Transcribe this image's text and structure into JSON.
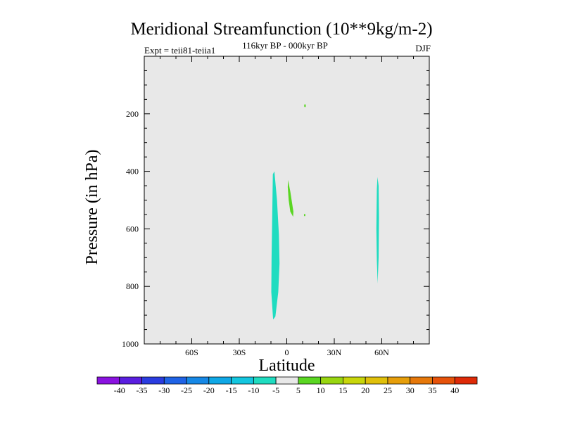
{
  "chart_data": {
    "type": "contour",
    "title": "Meridional Streamfunction (10**9kg/m-2)",
    "subtitle_left": "Expt = teii81-teiia1",
    "subtitle_center": "116kyr BP - 000kyr BP",
    "subtitle_right": "DJF",
    "xlabel": "Latitude",
    "ylabel": "Pressure (in hPa)",
    "xlim": [
      -90,
      90
    ],
    "ylim": [
      1000,
      0
    ],
    "x_ticks": [
      {
        "value": -60,
        "label": "60S"
      },
      {
        "value": -30,
        "label": "30S"
      },
      {
        "value": 0,
        "label": "0"
      },
      {
        "value": 30,
        "label": "30N"
      },
      {
        "value": 60,
        "label": "60N"
      }
    ],
    "y_ticks": [
      {
        "value": 200,
        "label": "200"
      },
      {
        "value": 400,
        "label": "400"
      },
      {
        "value": 600,
        "label": "600"
      },
      {
        "value": 800,
        "label": "800"
      },
      {
        "value": 1000,
        "label": "1000"
      }
    ],
    "background_color": "#e8e8e8",
    "colorbar": {
      "labels": [
        "-40",
        "-35",
        "-30",
        "-25",
        "-20",
        "-15",
        "-10",
        "-5",
        "5",
        "10",
        "15",
        "20",
        "25",
        "30",
        "35",
        "40"
      ],
      "colors": [
        "#8a12e0",
        "#5a1ee0",
        "#2a3ce0",
        "#1f63e6",
        "#1688e6",
        "#0fa8e6",
        "#13c6df",
        "#1fdcc0",
        "#e8e8e8",
        "#5ad622",
        "#98d610",
        "#c8d60a",
        "#e0c00a",
        "#e69e0a",
        "#e6780a",
        "#e6520a",
        "#de2a08"
      ]
    },
    "features": [
      {
        "name": "southern-tropical-cell",
        "level": "-10 to -5",
        "color": "#1fdcc0",
        "polygon": [
          [
            -8.8,
            410
          ],
          [
            -7.8,
            400
          ],
          [
            -6.2,
            500
          ],
          [
            -5.0,
            620
          ],
          [
            -4.6,
            720
          ],
          [
            -5.4,
            820
          ],
          [
            -7.2,
            905
          ],
          [
            -8.6,
            915
          ],
          [
            -9.8,
            820
          ],
          [
            -9.6,
            700
          ],
          [
            -9.2,
            560
          ]
        ]
      },
      {
        "name": "northern-midlatitude-cell",
        "level": "-10 to -5",
        "color": "#1fdcc0",
        "polygon": [
          [
            57.3,
            420
          ],
          [
            58.0,
            450
          ],
          [
            58.2,
            560
          ],
          [
            58.0,
            700
          ],
          [
            57.4,
            790
          ],
          [
            56.9,
            710
          ],
          [
            56.6,
            600
          ],
          [
            56.9,
            460
          ]
        ]
      },
      {
        "name": "equatorial-positive-cell",
        "level": "5 to 10",
        "color": "#5ad622",
        "polygon": [
          [
            0.8,
            430
          ],
          [
            2.2,
            470
          ],
          [
            4.2,
            540
          ],
          [
            4.0,
            558
          ],
          [
            2.2,
            540
          ],
          [
            1.2,
            500
          ],
          [
            0.6,
            455
          ]
        ]
      },
      {
        "name": "upper-positive-speck",
        "level": "5 to 10",
        "color": "#5ad622",
        "ellipse": {
          "x": 11.5,
          "p": 172,
          "rx": 0.5,
          "rp": 5
        }
      },
      {
        "name": "mid-positive-speck",
        "level": "5 to 10",
        "color": "#5ad622",
        "ellipse": {
          "x": 11.3,
          "p": 552,
          "rx": 0.4,
          "rp": 4
        }
      }
    ]
  }
}
